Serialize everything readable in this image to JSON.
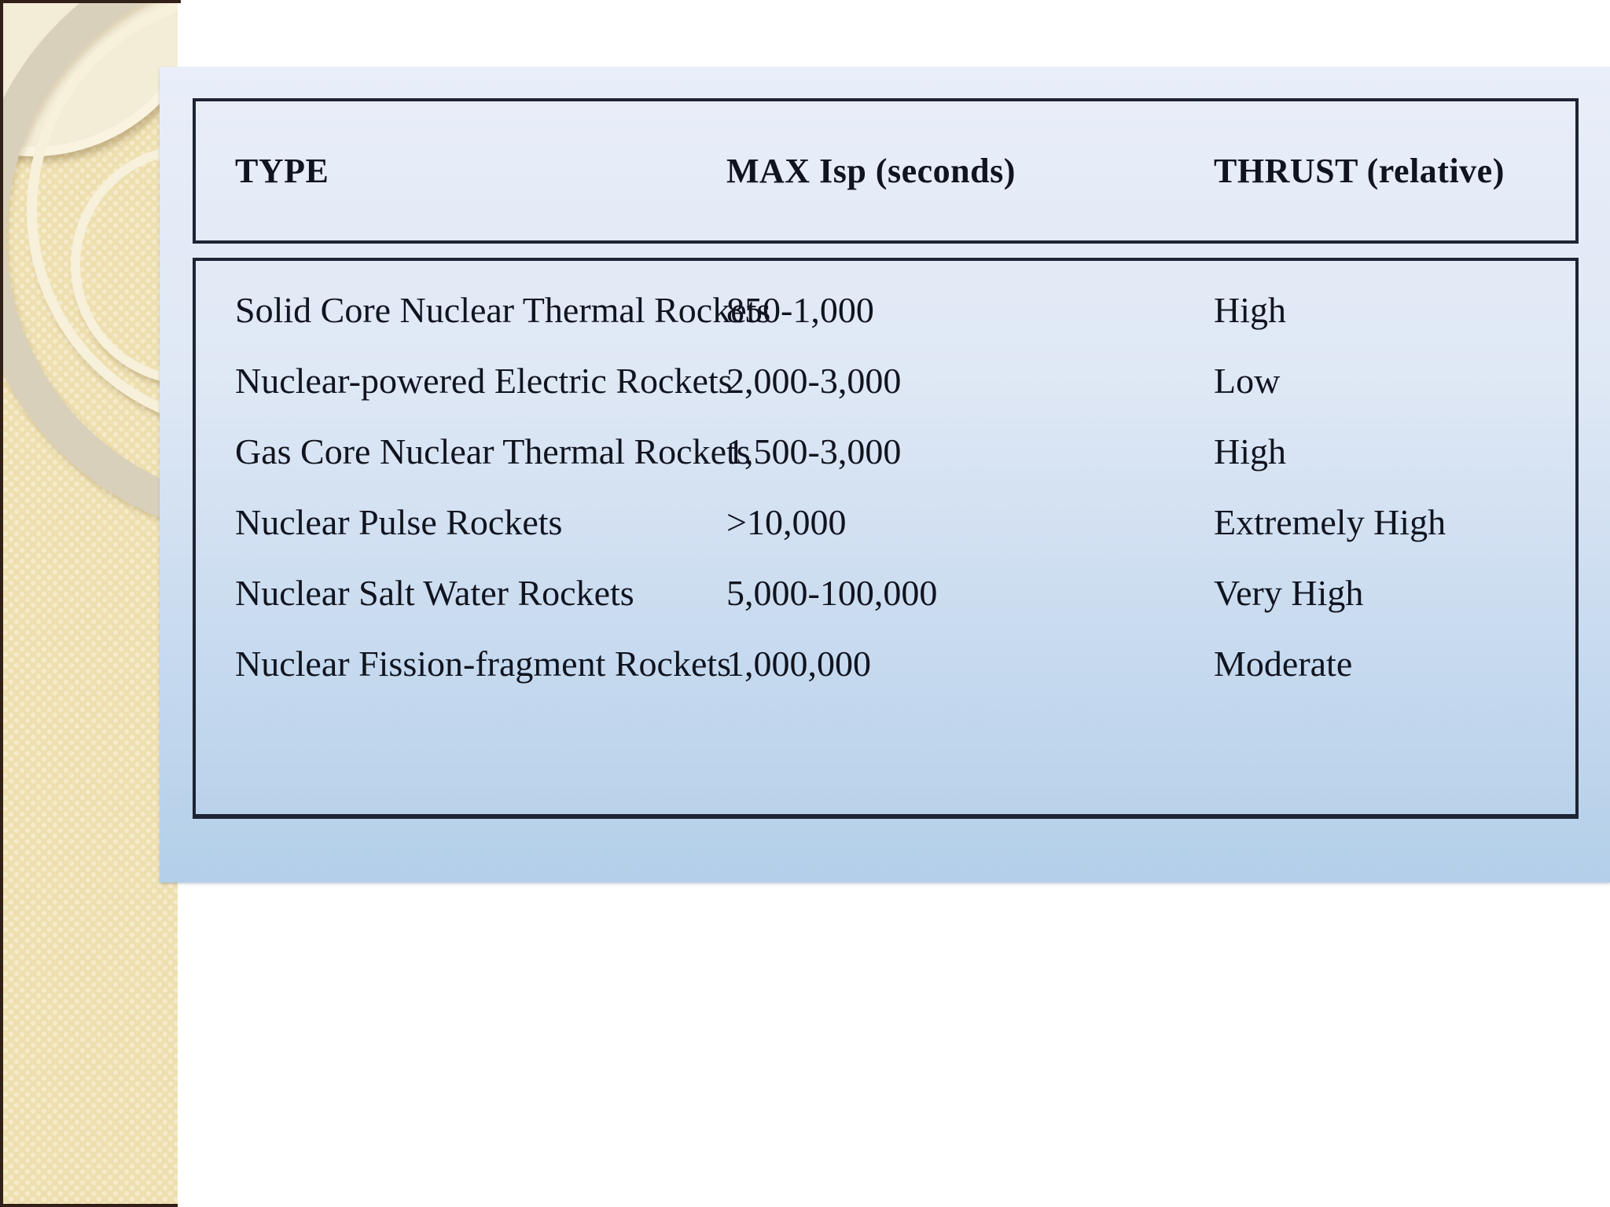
{
  "slide": {
    "table": {
      "headers": [
        "TYPE",
        "MAX Isp (seconds)",
        "THRUST (relative)"
      ],
      "rows": [
        {
          "type": "Solid Core Nuclear Thermal Rockets",
          "isp": "850-1,000",
          "thrust": "High"
        },
        {
          "type": "Nuclear-powered Electric Rockets",
          "isp": "2,000-3,000",
          "thrust": "Low"
        },
        {
          "type": "Gas Core Nuclear Thermal Rockets",
          "isp": "1,500-3,000",
          "thrust": "High"
        },
        {
          "type": "Nuclear Pulse Rockets",
          "isp": ">10,000",
          "thrust": "Extremely High"
        },
        {
          "type": "Nuclear Salt Water Rockets",
          "isp": "5,000-100,000",
          "thrust": "Very High"
        },
        {
          "type": "Nuclear Fission-fragment Rockets",
          "isp": "1,000,000",
          "thrust": "Moderate"
        }
      ]
    },
    "colors": {
      "sidebar_beige": "#eedfb0",
      "sidebar_dot": "#f5ebca",
      "panel_blue_top": "#e9eef9",
      "panel_blue_bottom": "#b3cfe9",
      "table_border": "#1d2433",
      "text": "#10141f",
      "edge_line": "#302016"
    }
  }
}
